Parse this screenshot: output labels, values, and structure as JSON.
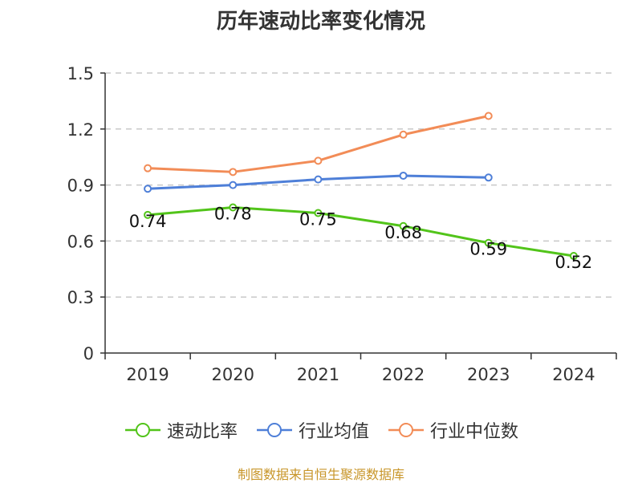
{
  "title": "历年速动比率变化情况",
  "source": "制图数据来自恒生聚源数据库",
  "chart_data": {
    "type": "line",
    "title": "历年速动比率变化情况",
    "categories": [
      "2019",
      "2020",
      "2021",
      "2022",
      "2023",
      "2024"
    ],
    "ylim": [
      0,
      1.5
    ],
    "yticks": [
      0,
      0.3,
      0.6,
      0.9,
      1.2,
      1.5
    ],
    "ytick_labels": [
      "0",
      "0.3",
      "0.6",
      "0.9",
      "1.2",
      "1.5"
    ],
    "grid": true,
    "legend_position": "bottom",
    "series": [
      {
        "name": "速动比率",
        "color": "#52c41a",
        "values": [
          0.74,
          0.78,
          0.75,
          0.68,
          0.59,
          0.52
        ],
        "labels": [
          "0.74",
          "0.78",
          "0.75",
          "0.68",
          "0.59",
          "0.52"
        ]
      },
      {
        "name": "行业均值",
        "color": "#4e7fd8",
        "values": [
          0.88,
          0.9,
          0.93,
          0.95,
          0.94,
          null
        ]
      },
      {
        "name": "行业中位数",
        "color": "#f28c57",
        "values": [
          0.99,
          0.97,
          1.03,
          1.17,
          1.27,
          null
        ]
      }
    ]
  }
}
